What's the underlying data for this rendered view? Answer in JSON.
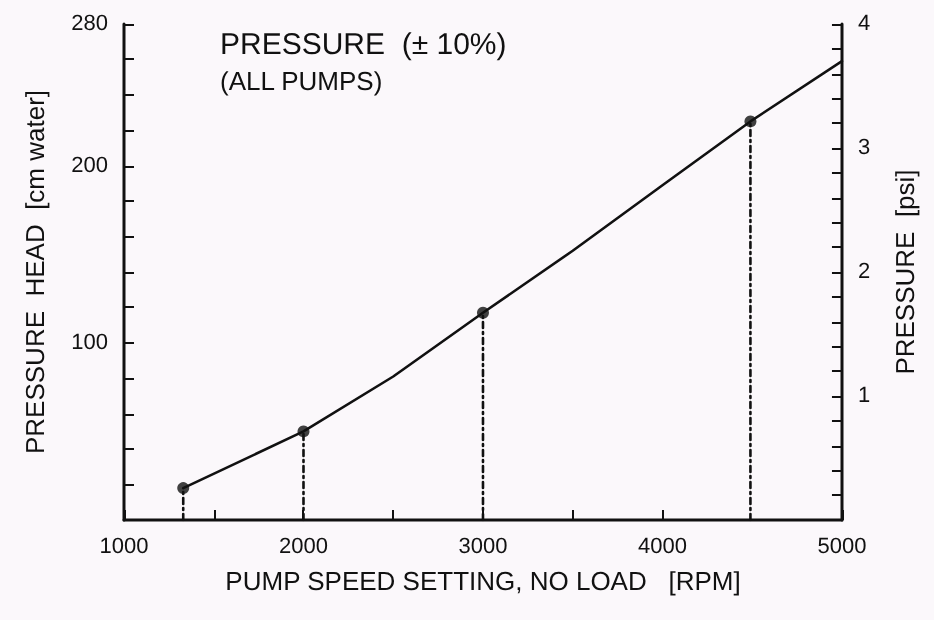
{
  "chart_data": {
    "type": "line",
    "title": "PRESSURE  (± 10%)",
    "subtitle": "(ALL PUMPS)",
    "xlabel": "PUMP SPEED SETTING, NO LOAD   [RPM]",
    "ylabel": "PRESSURE  HEAD  [cm water]",
    "y2label": "PRESSURE  [psi]",
    "xlim": [
      1000,
      5000
    ],
    "xticks": [
      1000,
      {
        "value": 1500,
        "label": null
      },
      2000,
      {
        "value": 2500,
        "label": null
      },
      3000,
      {
        "value": 3500,
        "label": null
      },
      4000,
      5000
    ],
    "ylim": [
      0,
      280
    ],
    "yticks": [
      {
        "value": 20,
        "label": null
      },
      {
        "value": 40,
        "label": null
      },
      {
        "value": 60,
        "label": null
      },
      {
        "value": 80,
        "label": null
      },
      100,
      {
        "value": 120,
        "label": null
      },
      {
        "value": 140,
        "label": null
      },
      {
        "value": 160,
        "label": null
      },
      {
        "value": 180,
        "label": null
      },
      200,
      {
        "value": 220,
        "label": null
      },
      {
        "value": 240,
        "label": null
      },
      {
        "value": 260,
        "label": null
      },
      280
    ],
    "y2lim": [
      0,
      4
    ],
    "y2ticks": [
      {
        "value": 0.2,
        "label": null
      },
      {
        "value": 0.4,
        "label": null
      },
      {
        "value": 0.6,
        "label": null
      },
      {
        "value": 0.8,
        "label": null
      },
      1,
      {
        "value": 1.2,
        "label": null
      },
      {
        "value": 1.4,
        "label": null
      },
      {
        "value": 1.6,
        "label": null
      },
      {
        "value": 1.8,
        "label": null
      },
      2,
      {
        "value": 2.2,
        "label": null
      },
      {
        "value": 2.4,
        "label": null
      },
      {
        "value": 2.6,
        "label": null
      },
      {
        "value": 2.8,
        "label": null
      },
      3,
      {
        "value": 3.2,
        "label": null
      },
      {
        "value": 3.4,
        "label": null
      },
      {
        "value": 3.6,
        "label": null
      },
      {
        "value": 3.8,
        "label": null
      },
      4
    ],
    "grid": false,
    "series": [
      {
        "color": "#111111",
        "marker": "none",
        "line_style": "solid",
        "x": [
          1330,
          2000,
          2500,
          3000,
          3500,
          4000,
          4490,
          5000
        ],
        "values": [
          18,
          50,
          81,
          117,
          152,
          189,
          225,
          259
        ]
      },
      {
        "type": "scatter",
        "color": "#111111",
        "marker": "circle",
        "x": [
          1330,
          2000,
          3000,
          4490
        ],
        "values": [
          18,
          50,
          117,
          225
        ]
      },
      {
        "color": "#111111",
        "marker": "none",
        "line_style": "dotted",
        "x": [
          1330,
          1330
        ],
        "values": [
          0,
          18
        ]
      },
      {
        "color": "#111111",
        "marker": "none",
        "line_style": "dotted",
        "x": [
          2000,
          2000
        ],
        "values": [
          0,
          50
        ]
      },
      {
        "color": "#111111",
        "marker": "none",
        "line_style": "dotted",
        "x": [
          3000,
          3000
        ],
        "values": [
          0,
          117
        ]
      },
      {
        "color": "#111111",
        "marker": "none",
        "line_style": "dotted",
        "x": [
          4490,
          4490
        ],
        "values": [
          0,
          225
        ]
      }
    ]
  }
}
